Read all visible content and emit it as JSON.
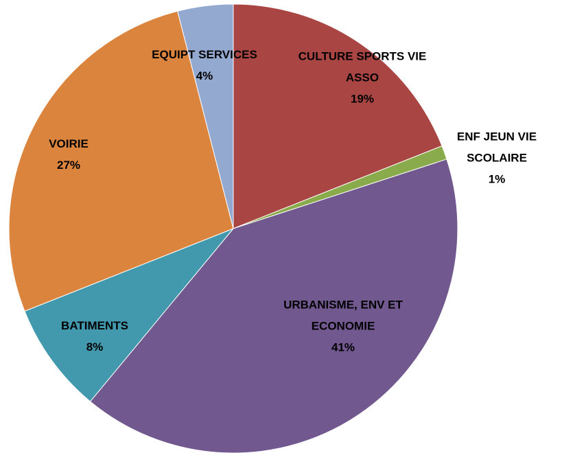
{
  "chart_data": {
    "type": "pie",
    "categories": [
      "CULTURE SPORTS VIE ASSO",
      "ENF JEUN VIE SCOLAIRE",
      "URBANISME, ENV ET ECONOMIE",
      "BATIMENTS",
      "VOIRIE",
      "EQUIPT SERVICES"
    ],
    "values": [
      19,
      1,
      41,
      8,
      27,
      4
    ],
    "value_labels": [
      "19%",
      "1%",
      "41%",
      "8%",
      "27%",
      "4%"
    ],
    "colors": [
      "#a94543",
      "#8aab4b",
      "#71588f",
      "#4299ad",
      "#db843d",
      "#93a9cf"
    ]
  }
}
